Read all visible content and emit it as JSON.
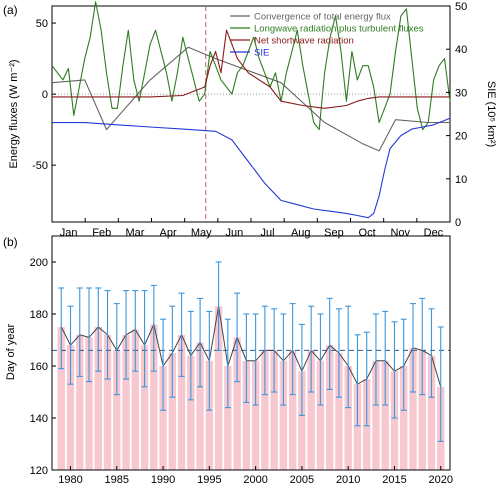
{
  "chart_data": [
    {
      "panel_label": "(a)",
      "type": "line",
      "x_tick_labels": [
        "Jan",
        "Feb",
        "Mar",
        "Apr",
        "May",
        "Jun",
        "Jul",
        "Aug",
        "Sep",
        "Oct",
        "Nov",
        "Dec"
      ],
      "xlim": [
        0,
        365
      ],
      "ylabel": "Energy fluxes (W m⁻²)",
      "ylim": [
        -90,
        62
      ],
      "y_ticks": [
        -50,
        0,
        50
      ],
      "ylabel_right": "SIE (10⁵ km²)",
      "ylim_right": [
        0,
        50
      ],
      "y_ticks_right": [
        0,
        10,
        20,
        30,
        40,
        50
      ],
      "legend": "top-right",
      "vline_day": 141,
      "zero_line": true,
      "colors": {
        "convergence": "#666666",
        "longwave": "#2e7d1f",
        "shortwave": "#8b1a1a",
        "sie": "#2438d6",
        "vline": "#c06060",
        "zero": "#999999"
      },
      "series": [
        {
          "name": "Convergence of total energy flux",
          "axis": "left",
          "x": [
            0,
            30,
            50,
            90,
            125,
            150,
            210,
            250,
            285,
            300,
            315,
            345,
            365
          ],
          "y": [
            8,
            10,
            -25,
            10,
            33,
            25,
            8,
            -20,
            -35,
            -40,
            -18,
            -20,
            -20
          ]
        },
        {
          "name": "Longwave radiation plus turbulent fluxes",
          "axis": "left",
          "x": [
            0,
            5,
            10,
            15,
            20,
            25,
            30,
            35,
            40,
            45,
            50,
            55,
            60,
            65,
            70,
            75,
            80,
            85,
            90,
            95,
            100,
            105,
            110,
            115,
            120,
            125,
            130,
            135,
            140,
            145,
            150,
            155,
            160,
            165,
            170,
            175,
            180,
            185,
            190,
            195,
            200,
            205,
            210,
            215,
            220,
            225,
            230,
            235,
            240,
            245,
            250,
            255,
            260,
            265,
            270,
            275,
            280,
            285,
            290,
            295,
            300,
            305,
            310,
            315,
            320,
            325,
            330,
            335,
            340,
            345,
            350,
            355,
            360,
            365
          ],
          "y": [
            20,
            15,
            10,
            18,
            -15,
            5,
            25,
            40,
            65,
            45,
            15,
            -10,
            -10,
            20,
            45,
            10,
            -5,
            15,
            35,
            45,
            30,
            15,
            -5,
            15,
            40,
            25,
            10,
            -5,
            0,
            30,
            20,
            10,
            5,
            0,
            15,
            20,
            30,
            40,
            25,
            15,
            5,
            15,
            -5,
            15,
            30,
            45,
            20,
            0,
            -20,
            -25,
            15,
            40,
            55,
            30,
            -5,
            30,
            10,
            20,
            20,
            5,
            -20,
            -10,
            0,
            30,
            55,
            60,
            25,
            -10,
            -25,
            -20,
            10,
            20,
            25,
            -5
          ]
        },
        {
          "name": "Net shortwave radiation",
          "axis": "left",
          "x": [
            0,
            30,
            60,
            90,
            120,
            140,
            145,
            150,
            155,
            160,
            170,
            180,
            190,
            200,
            210,
            230,
            250,
            270,
            280,
            290,
            300,
            330,
            365
          ],
          "y": [
            -2,
            -2,
            -2,
            -2,
            -1,
            5,
            20,
            30,
            15,
            45,
            25,
            15,
            10,
            5,
            -5,
            -8,
            -10,
            -8,
            -5,
            -3,
            -2,
            -2,
            -2
          ]
        },
        {
          "name": "SIE",
          "axis": "right",
          "x": [
            0,
            30,
            60,
            90,
            120,
            150,
            165,
            180,
            195,
            210,
            225,
            240,
            255,
            270,
            280,
            290,
            295,
            300,
            305,
            310,
            320,
            330,
            340,
            350,
            365
          ],
          "y": [
            23,
            23,
            22.5,
            22,
            21.5,
            21,
            19,
            14,
            9,
            5,
            4,
            3,
            2.5,
            2,
            1.5,
            1,
            2,
            6,
            12,
            17,
            20,
            21.5,
            22,
            22.5,
            24
          ]
        }
      ]
    },
    {
      "panel_label": "(b)",
      "type": "bar",
      "ylabel": "Day of year",
      "ylim": [
        120,
        210
      ],
      "y_ticks": [
        120,
        140,
        160,
        180,
        200
      ],
      "x_ticks": [
        1980,
        1985,
        1990,
        1995,
        2000,
        2005,
        2010,
        2015,
        2020
      ],
      "xlim": [
        1978,
        2021
      ],
      "mean_line": 166,
      "colors": {
        "bar": "#f8c8d0",
        "error": "#3c96dc",
        "line": "#444444",
        "mean": "#2a5c8a"
      },
      "years": [
        1979,
        1980,
        1981,
        1982,
        1983,
        1984,
        1985,
        1986,
        1987,
        1988,
        1989,
        1990,
        1991,
        1992,
        1993,
        1994,
        1995,
        1996,
        1997,
        1998,
        1999,
        2000,
        2001,
        2002,
        2003,
        2004,
        2005,
        2006,
        2007,
        2008,
        2009,
        2010,
        2011,
        2012,
        2013,
        2014,
        2015,
        2016,
        2017,
        2018,
        2019,
        2020
      ],
      "values": [
        175,
        168,
        172,
        171,
        175,
        172,
        166,
        172,
        174,
        168,
        176,
        160,
        165,
        172,
        164,
        169,
        162,
        183,
        160,
        171,
        162,
        162,
        166,
        166,
        162,
        166,
        158,
        166,
        162,
        168,
        165,
        160,
        153,
        155,
        162,
        162,
        158,
        160,
        167,
        166,
        164,
        152
      ],
      "error_low": [
        159,
        153,
        156,
        154,
        158,
        155,
        149,
        155,
        158,
        152,
        158,
        143,
        148,
        156,
        147,
        152,
        143,
        166,
        144,
        154,
        146,
        145,
        149,
        150,
        145,
        149,
        141,
        150,
        145,
        151,
        148,
        144,
        137,
        137,
        145,
        145,
        140,
        143,
        150,
        149,
        148,
        131
      ],
      "error_high": [
        190,
        183,
        190,
        190,
        190,
        189,
        184,
        189,
        189,
        189,
        191,
        178,
        183,
        188,
        181,
        186,
        181,
        200,
        178,
        188,
        180,
        180,
        183,
        182,
        180,
        184,
        176,
        183,
        180,
        186,
        182,
        183,
        172,
        173,
        180,
        181,
        177,
        178,
        184,
        186,
        182,
        175
      ]
    }
  ]
}
